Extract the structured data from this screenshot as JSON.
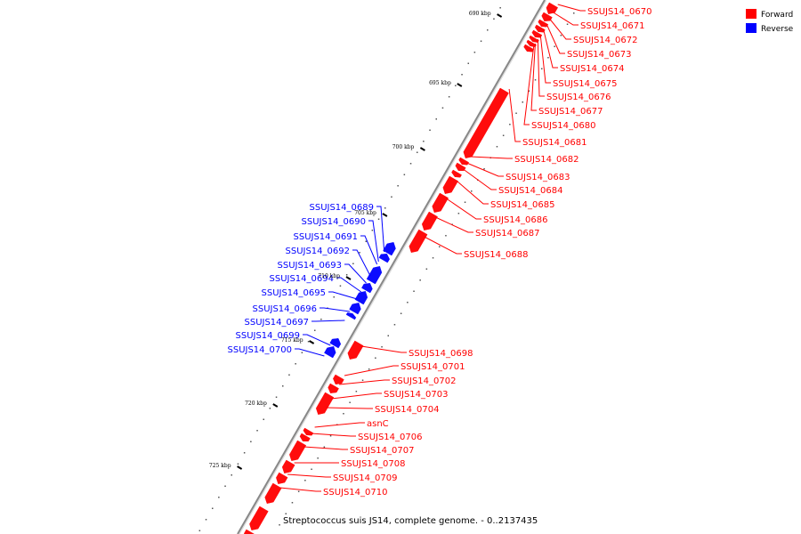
{
  "caption": "Streptococcus suis JS14, complete genome. - 0..2137435",
  "colors": {
    "forward": "#ff0000",
    "reverse": "#0000ff",
    "backbone": "#888888",
    "tick": "#000000"
  },
  "legend": [
    {
      "label": "Forward",
      "strand": "forward"
    },
    {
      "label": "Reverse",
      "strand": "reverse"
    }
  ],
  "ticks": [
    "690 kbp",
    "695 kbp",
    "700 kbp",
    "705 kbp",
    "710 kbp",
    "715 kbp",
    "720 kbp",
    "725 kbp"
  ],
  "forward_labels": [
    "SSUJS14_0670",
    "SSUJS14_0671",
    "SSUJS14_0672",
    "SSUJS14_0673",
    "SSUJS14_0674",
    "SSUJS14_0675",
    "SSUJS14_0676",
    "SSUJS14_0677",
    "SSUJS14_0680",
    "SSUJS14_0681",
    "SSUJS14_0682",
    "SSUJS14_0683",
    "SSUJS14_0684",
    "SSUJS14_0685",
    "SSUJS14_0686",
    "SSUJS14_0687",
    "SSUJS14_0688",
    "SSUJS14_0698",
    "SSUJS14_0701",
    "SSUJS14_0702",
    "SSUJS14_0703",
    "SSUJS14_0704",
    "asnC",
    "SSUJS14_0706",
    "SSUJS14_0707",
    "SSUJS14_0708",
    "SSUJS14_0709",
    "SSUJS14_0710"
  ],
  "reverse_labels": [
    "SSUJS14_0689",
    "SSUJS14_0690",
    "SSUJS14_0691",
    "SSUJS14_0692",
    "SSUJS14_0693",
    "SSUJS14_0694",
    "SSUJS14_0695",
    "SSUJS14_0696",
    "SSUJS14_0697",
    "SSUJS14_0699",
    "SSUJS14_0700"
  ]
}
